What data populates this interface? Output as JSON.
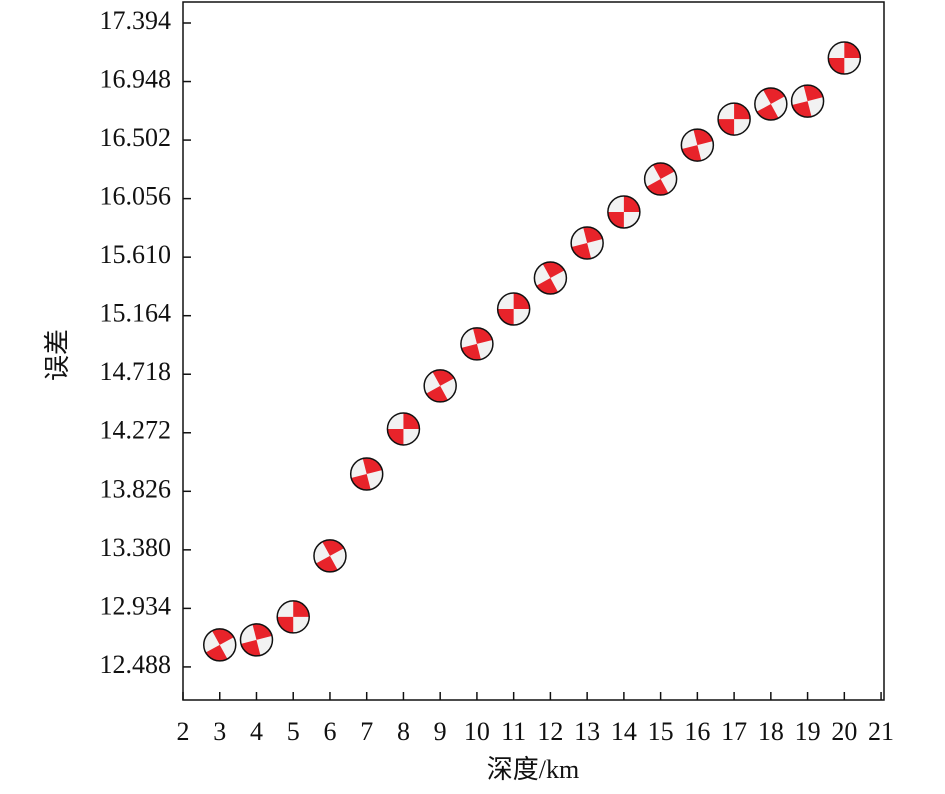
{
  "chart_data": {
    "type": "scatter",
    "x_label": "深度/km",
    "y_label": "误差",
    "x": [
      3,
      4,
      5,
      6,
      7,
      8,
      9,
      10,
      11,
      12,
      13,
      14,
      15,
      16,
      17,
      18,
      19,
      20
    ],
    "values": [
      12.656,
      12.694,
      12.869,
      13.334,
      13.958,
      14.301,
      14.629,
      14.949,
      15.215,
      15.451,
      15.718,
      15.954,
      16.205,
      16.464,
      16.662,
      16.777,
      16.799,
      17.127
    ],
    "color": "#e8232a",
    "xlim": [
      2,
      21.08
    ],
    "ylim": [
      12.236,
      17.554
    ],
    "xticks": [
      2,
      3,
      4,
      5,
      6,
      7,
      8,
      9,
      10,
      11,
      12,
      13,
      14,
      15,
      16,
      17,
      18,
      19,
      20,
      21
    ],
    "yticks": [
      12.488,
      12.934,
      {
        "value": 13.38,
        "label": "13.380"
      },
      13.826,
      14.272,
      14.718,
      15.164,
      {
        "value": 15.61,
        "label": "15.610"
      },
      16.056,
      16.502,
      16.948,
      17.394
    ],
    "grid": false
  }
}
